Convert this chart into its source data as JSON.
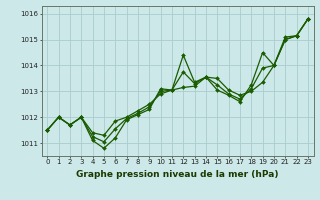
{
  "title": "Graphe pression niveau de la mer (hPa)",
  "bg_color": "#cce8e8",
  "grid_color": "#aacccc",
  "line_color": "#1a5c00",
  "x": [
    0,
    1,
    2,
    3,
    4,
    5,
    6,
    7,
    8,
    9,
    10,
    11,
    12,
    13,
    14,
    15,
    16,
    17,
    18,
    19,
    20,
    21,
    22,
    23
  ],
  "y_series1": [
    1011.5,
    1012.0,
    1011.7,
    1012.0,
    1011.1,
    1010.8,
    1011.2,
    1011.9,
    1012.1,
    1012.3,
    1013.1,
    1013.05,
    1014.4,
    1013.35,
    1013.55,
    1013.05,
    1012.85,
    1012.6,
    1013.25,
    1014.5,
    1014.0,
    1015.1,
    1015.15,
    1015.8
  ],
  "y_series2": [
    1011.5,
    1012.0,
    1011.7,
    1012.0,
    1011.4,
    1011.3,
    1011.85,
    1012.0,
    1012.25,
    1012.5,
    1012.9,
    1013.05,
    1013.15,
    1013.2,
    1013.55,
    1013.5,
    1013.05,
    1012.85,
    1013.0,
    1013.35,
    1014.0,
    1015.0,
    1015.15,
    1015.8
  ],
  "y_series3": [
    1011.5,
    1012.0,
    1011.7,
    1012.0,
    1011.25,
    1011.05,
    1011.55,
    1011.95,
    1012.15,
    1012.4,
    1013.0,
    1013.05,
    1013.75,
    1013.3,
    1013.55,
    1013.25,
    1012.9,
    1012.7,
    1013.1,
    1013.9,
    1014.0,
    1015.0,
    1015.15,
    1015.8
  ],
  "ylim": [
    1010.5,
    1016.3
  ],
  "yticks": [
    1011,
    1012,
    1013,
    1014,
    1015,
    1016
  ],
  "xticks": [
    0,
    1,
    2,
    3,
    4,
    5,
    6,
    7,
    8,
    9,
    10,
    11,
    12,
    13,
    14,
    15,
    16,
    17,
    18,
    19,
    20,
    21,
    22,
    23
  ],
  "markersize": 2.0,
  "linewidth": 0.9,
  "title_fontsize": 6.5,
  "tick_fontsize": 5.0
}
